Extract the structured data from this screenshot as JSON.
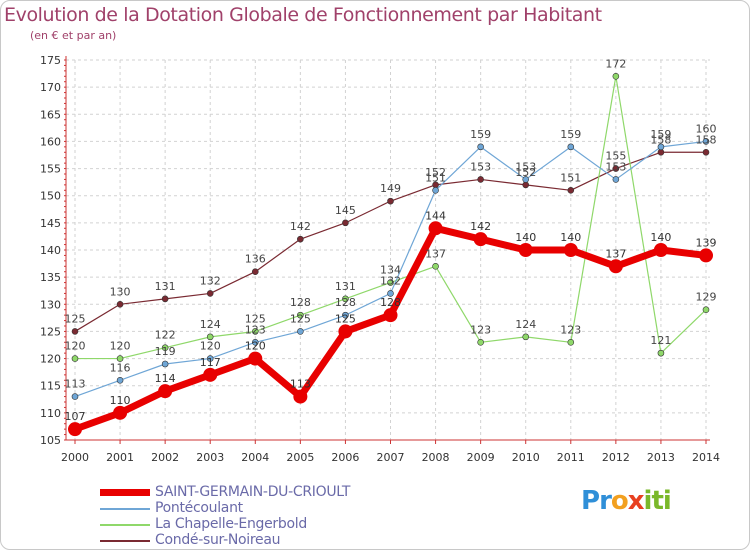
{
  "title": "Evolution de la Dotation Globale de Fonctionnement par Habitant",
  "subtitle": "(en € et par an)",
  "logo": {
    "letters": [
      "P",
      "r",
      "o",
      "x",
      "i",
      "t",
      "i"
    ],
    "colors": [
      "#2f8fd8",
      "#2f8fd8",
      "#f2a020",
      "#e84020",
      "#7ab82a",
      "#7ab82a",
      "#7ab82a"
    ]
  },
  "chart_data": {
    "type": "line",
    "x": [
      "2000",
      "2001",
      "2002",
      "2003",
      "2004",
      "2005",
      "2006",
      "2007",
      "2008",
      "2009",
      "2010",
      "2011",
      "2012",
      "2013",
      "2014"
    ],
    "ylim": [
      105,
      175
    ],
    "yticks": [
      105,
      110,
      115,
      120,
      125,
      130,
      135,
      140,
      145,
      150,
      155,
      160,
      165,
      170,
      175
    ],
    "grid": true,
    "legend_position": "bottom-left",
    "series": [
      {
        "name": "SAINT-GERMAIN-DU-CRIOULT",
        "color": "#e80000",
        "width": 7,
        "label_color": "#333333",
        "values": [
          107,
          110,
          114,
          117,
          120,
          113,
          125,
          128,
          144,
          142,
          140,
          140,
          137,
          140,
          139
        ]
      },
      {
        "name": "Pontécoulant",
        "color": "#6fa6d6",
        "width": 1.2,
        "label_color": "#444444",
        "values": [
          113,
          116,
          119,
          120,
          123,
          125,
          128,
          132,
          151,
          159,
          153,
          159,
          153,
          159,
          160
        ]
      },
      {
        "name": "La Chapelle-Engerbold",
        "color": "#8fd86a",
        "width": 1.2,
        "label_color": "#444444",
        "values": [
          120,
          120,
          122,
          124,
          125,
          128,
          131,
          134,
          137,
          123,
          124,
          123,
          172,
          121,
          129
        ]
      },
      {
        "name": "Condé-sur-Noireau",
        "color": "#7a2a32",
        "width": 1.2,
        "label_color": "#444444",
        "values": [
          125,
          130,
          131,
          132,
          136,
          142,
          145,
          149,
          152,
          153,
          152,
          151,
          155,
          158,
          158
        ]
      }
    ]
  }
}
